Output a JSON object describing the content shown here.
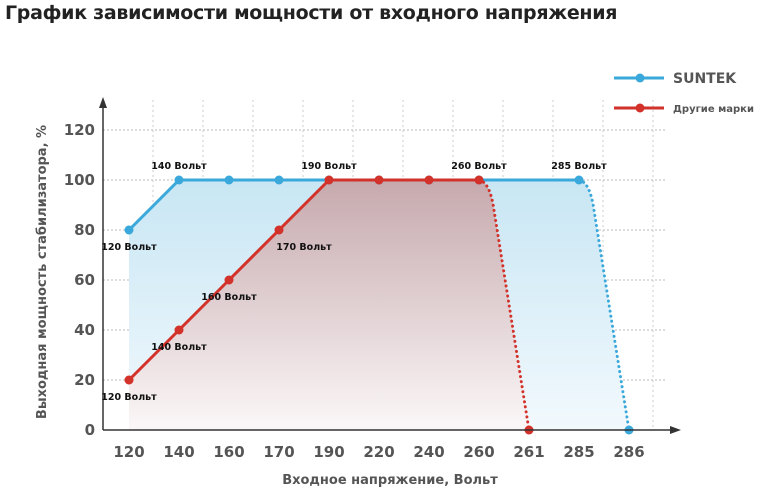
{
  "chart_data": {
    "type": "area",
    "title": "График зависимости мощности от входного напряжения",
    "xlabel": "Входное напряжение, Вольт",
    "ylabel": "Выходная мощность стабилизатора, %",
    "categories": [
      "120",
      "140",
      "160",
      "170",
      "190",
      "220",
      "240",
      "260",
      "261",
      "285",
      "286"
    ],
    "ylim": [
      0,
      120
    ],
    "yticks": [
      0,
      20,
      40,
      60,
      80,
      100,
      120
    ],
    "grid": true,
    "legend": "top-right",
    "series": [
      {
        "name": "SUNTEK",
        "color": "#3aa8da",
        "points": [
          [
            "120",
            80
          ],
          [
            "140",
            100
          ],
          [
            "160",
            100
          ],
          [
            "170",
            100
          ],
          [
            "190",
            100
          ],
          [
            "220",
            100
          ],
          [
            "240",
            100
          ],
          [
            "260",
            100
          ],
          [
            "285",
            100
          ]
        ],
        "drop_to": [
          "286",
          0
        ],
        "labels": [
          {
            "x": "120",
            "text": "120 Вольт",
            "pos": "below"
          },
          {
            "x": "140",
            "text": "140 Вольт",
            "pos": "above"
          },
          {
            "x": "285",
            "text": "285 Вольт",
            "pos": "above"
          }
        ]
      },
      {
        "name": "Другие марки",
        "color": "#d2322a",
        "points": [
          [
            "120",
            20
          ],
          [
            "140",
            40
          ],
          [
            "160",
            60
          ],
          [
            "170",
            80
          ],
          [
            "190",
            100
          ],
          [
            "220",
            100
          ],
          [
            "240",
            100
          ],
          [
            "260",
            100
          ]
        ],
        "drop_to": [
          "261",
          0
        ],
        "labels": [
          {
            "x": "120",
            "text": "120 Вольт",
            "pos": "below"
          },
          {
            "x": "140",
            "text": "140 Вольт",
            "pos": "below"
          },
          {
            "x": "160",
            "text": "160 Вольт",
            "pos": "below"
          },
          {
            "x": "170",
            "text": "170 Вольт",
            "pos": "below-right"
          },
          {
            "x": "190",
            "text": "190 Вольт",
            "pos": "above"
          },
          {
            "x": "260",
            "text": "260 Вольт",
            "pos": "above"
          }
        ]
      }
    ]
  }
}
